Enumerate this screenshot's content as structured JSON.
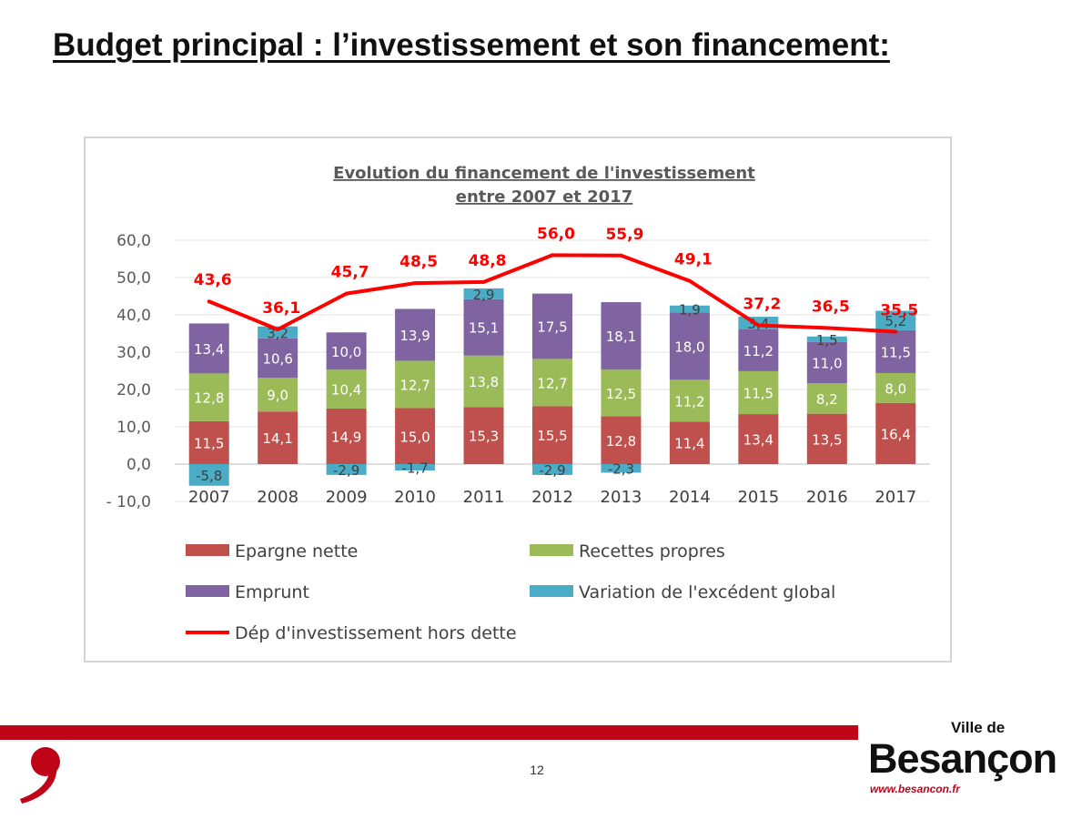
{
  "slide": {
    "title": "Budget principal : l’investissement et son financement:",
    "page_number": "12"
  },
  "branding": {
    "ville_de": "Ville de",
    "name": "Besançon",
    "url": "www.besancon.fr",
    "accent_color": "#c00418"
  },
  "chart_data": {
    "type": "bar",
    "stacked": true,
    "title": "Evolution du financement de l'investissement entre 2007 et 2017",
    "title_lines": [
      "Evolution du financement de l'investissement",
      "entre 2007 et 2017"
    ],
    "categories": [
      "2007",
      "2008",
      "2009",
      "2010",
      "2011",
      "2012",
      "2013",
      "2014",
      "2015",
      "2016",
      "2017"
    ],
    "y_tick_labels": [
      "60,0",
      "50,0",
      "40,0",
      "30,0",
      "20,0",
      "10,0",
      "0,0",
      "- 10,0"
    ],
    "y_ticks": [
      60,
      50,
      40,
      30,
      20,
      10,
      0,
      -10
    ],
    "ylim": [
      -10,
      60
    ],
    "grid": true,
    "legend_position": "bottom",
    "series": [
      {
        "name": "Epargne nette",
        "color": "#c0504d",
        "values": [
          11.5,
          14.1,
          14.9,
          15.0,
          15.3,
          15.5,
          12.8,
          11.4,
          13.4,
          13.5,
          16.4
        ],
        "labels": [
          "11,5",
          "14,1",
          "14,9",
          "15,0",
          "15,3",
          "15,5",
          "12,8",
          "11,4",
          "13,4",
          "13,5",
          "16,4"
        ]
      },
      {
        "name": "Recettes propres",
        "color": "#9bbb59",
        "values": [
          12.8,
          9.0,
          10.4,
          12.7,
          13.8,
          12.7,
          12.5,
          11.2,
          11.5,
          8.2,
          8.0
        ],
        "labels": [
          "12,8",
          "9,0",
          "10,4",
          "12,7",
          "13,8",
          "12,7",
          "12,5",
          "11,2",
          "11,5",
          "8,2",
          "8,0"
        ]
      },
      {
        "name": "Emprunt",
        "color": "#8064a2",
        "values": [
          13.4,
          10.6,
          10.0,
          13.9,
          15.1,
          17.5,
          18.1,
          18.0,
          11.2,
          11.0,
          11.5
        ],
        "labels": [
          "13,4",
          "10,6",
          "10,0",
          "13,9",
          "15,1",
          "17,5",
          "18,1",
          "18,0",
          "11,2",
          "11,0",
          "11,5"
        ]
      },
      {
        "name": "Variation de l'excédent global",
        "color": "#4bacc6",
        "values": [
          -5.8,
          3.2,
          -2.9,
          -1.7,
          2.9,
          -2.9,
          -2.3,
          1.9,
          3.4,
          1.5,
          5.2
        ],
        "labels": [
          "-5,8",
          "3,2",
          "-2,9",
          "-1,7",
          "2,9",
          "-2,9",
          "-2,3",
          "1,9",
          "3,4",
          "1,5",
          "5,2"
        ]
      }
    ],
    "line_series": {
      "name": "Dép d'investissement hors dette",
      "color": "#ff0000",
      "values": [
        43.6,
        36.1,
        45.7,
        48.5,
        48.8,
        56.0,
        55.9,
        49.1,
        37.2,
        36.5,
        35.5
      ],
      "labels": [
        "43,6",
        "36,1",
        "45,7",
        "48,5",
        "48,8",
        "56,0",
        "55,9",
        "49,1",
        "37,2",
        "36,5",
        "35,5"
      ]
    }
  }
}
